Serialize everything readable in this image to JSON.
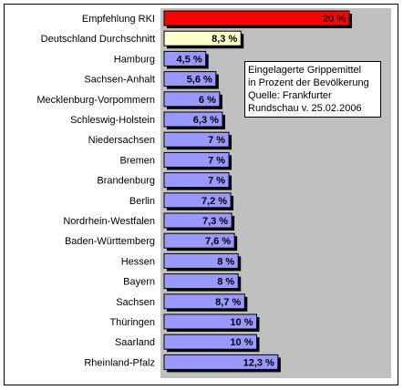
{
  "chart_data": {
    "type": "bar",
    "orientation": "horizontal",
    "categories": [
      "Empfehlung RKI",
      "Deutschland Durchschnitt",
      "Hamburg",
      "Sachsen-Anhalt",
      "Mecklenburg-Vorpommern",
      "Schleswig-Holstein",
      "Niedersachsen",
      "Bremen",
      "Brandenburg",
      "Berlin",
      "Nordrhein-Westfalen",
      "Baden-Württemberg",
      "Hessen",
      "Bayern",
      "Sachsen",
      "Thüringen",
      "Saarland",
      "Rheinland-Pfalz"
    ],
    "values": [
      20,
      8.3,
      4.5,
      5.6,
      6,
      6.3,
      7,
      7,
      7,
      7.2,
      7.3,
      7.6,
      8,
      8,
      8.7,
      10,
      10,
      12.3
    ],
    "value_labels": [
      "20 %",
      "8,3 %",
      "4,5 %",
      "5,6 %",
      "6 %",
      "6,3 %",
      "7 %",
      "7 %",
      "7 %",
      "7,2 %",
      "7,3 %",
      "7,6 %",
      "8 %",
      "8 %",
      "8,7 %",
      "10 %",
      "10 %",
      "12,3 %"
    ],
    "bar_colors": [
      "#ff0000",
      "#ffffcc",
      "#9999ff",
      "#9999ff",
      "#9999ff",
      "#9999ff",
      "#9999ff",
      "#9999ff",
      "#9999ff",
      "#9999ff",
      "#9999ff",
      "#9999ff",
      "#9999ff",
      "#9999ff",
      "#9999ff",
      "#9999ff",
      "#9999ff",
      "#9999ff"
    ],
    "xlim": [
      0,
      23
    ],
    "plot_background": "#c0c0c0",
    "grid": false,
    "legend": false,
    "annotation": {
      "lines": [
        "Eingelagerte Grippemittel",
        "in Prozent der Bevölkerung",
        "Quelle: Frankfurter",
        "Rundschau v. 25.02.2006"
      ],
      "placement": "top-right"
    }
  }
}
